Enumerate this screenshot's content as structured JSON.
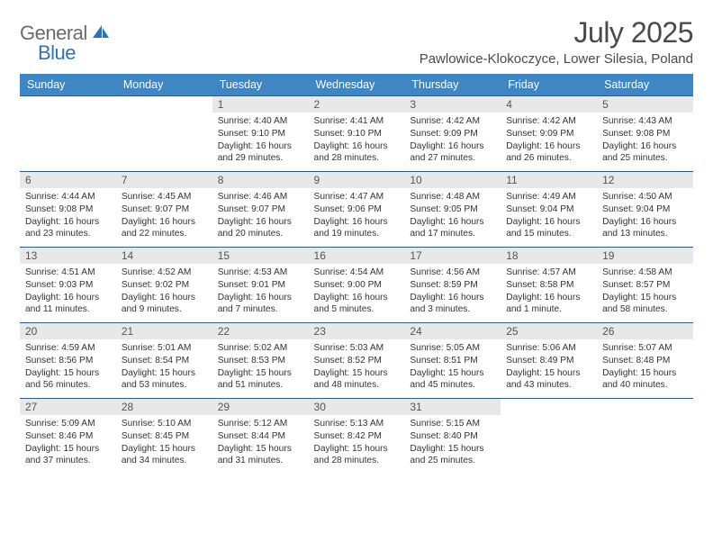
{
  "logo": {
    "textA": "General",
    "textB": "Blue"
  },
  "title": "July 2025",
  "location": "Pawlowice-Klokoczyce, Lower Silesia, Poland",
  "colors": {
    "headerBg": "#3f86c5",
    "rowBorder": "#2d5c8a",
    "dayNumBg": "#e8e8e8",
    "text": "#333333",
    "titleText": "#4a4a4a",
    "logoGray": "#6b6b6b",
    "logoBlue": "#2d73b6"
  },
  "dayHeaders": [
    "Sunday",
    "Monday",
    "Tuesday",
    "Wednesday",
    "Thursday",
    "Friday",
    "Saturday"
  ],
  "weeks": [
    [
      {
        "n": "",
        "sr": "",
        "ss": "",
        "dl": ""
      },
      {
        "n": "",
        "sr": "",
        "ss": "",
        "dl": ""
      },
      {
        "n": "1",
        "sr": "Sunrise: 4:40 AM",
        "ss": "Sunset: 9:10 PM",
        "dl": "Daylight: 16 hours and 29 minutes."
      },
      {
        "n": "2",
        "sr": "Sunrise: 4:41 AM",
        "ss": "Sunset: 9:10 PM",
        "dl": "Daylight: 16 hours and 28 minutes."
      },
      {
        "n": "3",
        "sr": "Sunrise: 4:42 AM",
        "ss": "Sunset: 9:09 PM",
        "dl": "Daylight: 16 hours and 27 minutes."
      },
      {
        "n": "4",
        "sr": "Sunrise: 4:42 AM",
        "ss": "Sunset: 9:09 PM",
        "dl": "Daylight: 16 hours and 26 minutes."
      },
      {
        "n": "5",
        "sr": "Sunrise: 4:43 AM",
        "ss": "Sunset: 9:08 PM",
        "dl": "Daylight: 16 hours and 25 minutes."
      }
    ],
    [
      {
        "n": "6",
        "sr": "Sunrise: 4:44 AM",
        "ss": "Sunset: 9:08 PM",
        "dl": "Daylight: 16 hours and 23 minutes."
      },
      {
        "n": "7",
        "sr": "Sunrise: 4:45 AM",
        "ss": "Sunset: 9:07 PM",
        "dl": "Daylight: 16 hours and 22 minutes."
      },
      {
        "n": "8",
        "sr": "Sunrise: 4:46 AM",
        "ss": "Sunset: 9:07 PM",
        "dl": "Daylight: 16 hours and 20 minutes."
      },
      {
        "n": "9",
        "sr": "Sunrise: 4:47 AM",
        "ss": "Sunset: 9:06 PM",
        "dl": "Daylight: 16 hours and 19 minutes."
      },
      {
        "n": "10",
        "sr": "Sunrise: 4:48 AM",
        "ss": "Sunset: 9:05 PM",
        "dl": "Daylight: 16 hours and 17 minutes."
      },
      {
        "n": "11",
        "sr": "Sunrise: 4:49 AM",
        "ss": "Sunset: 9:04 PM",
        "dl": "Daylight: 16 hours and 15 minutes."
      },
      {
        "n": "12",
        "sr": "Sunrise: 4:50 AM",
        "ss": "Sunset: 9:04 PM",
        "dl": "Daylight: 16 hours and 13 minutes."
      }
    ],
    [
      {
        "n": "13",
        "sr": "Sunrise: 4:51 AM",
        "ss": "Sunset: 9:03 PM",
        "dl": "Daylight: 16 hours and 11 minutes."
      },
      {
        "n": "14",
        "sr": "Sunrise: 4:52 AM",
        "ss": "Sunset: 9:02 PM",
        "dl": "Daylight: 16 hours and 9 minutes."
      },
      {
        "n": "15",
        "sr": "Sunrise: 4:53 AM",
        "ss": "Sunset: 9:01 PM",
        "dl": "Daylight: 16 hours and 7 minutes."
      },
      {
        "n": "16",
        "sr": "Sunrise: 4:54 AM",
        "ss": "Sunset: 9:00 PM",
        "dl": "Daylight: 16 hours and 5 minutes."
      },
      {
        "n": "17",
        "sr": "Sunrise: 4:56 AM",
        "ss": "Sunset: 8:59 PM",
        "dl": "Daylight: 16 hours and 3 minutes."
      },
      {
        "n": "18",
        "sr": "Sunrise: 4:57 AM",
        "ss": "Sunset: 8:58 PM",
        "dl": "Daylight: 16 hours and 1 minute."
      },
      {
        "n": "19",
        "sr": "Sunrise: 4:58 AM",
        "ss": "Sunset: 8:57 PM",
        "dl": "Daylight: 15 hours and 58 minutes."
      }
    ],
    [
      {
        "n": "20",
        "sr": "Sunrise: 4:59 AM",
        "ss": "Sunset: 8:56 PM",
        "dl": "Daylight: 15 hours and 56 minutes."
      },
      {
        "n": "21",
        "sr": "Sunrise: 5:01 AM",
        "ss": "Sunset: 8:54 PM",
        "dl": "Daylight: 15 hours and 53 minutes."
      },
      {
        "n": "22",
        "sr": "Sunrise: 5:02 AM",
        "ss": "Sunset: 8:53 PM",
        "dl": "Daylight: 15 hours and 51 minutes."
      },
      {
        "n": "23",
        "sr": "Sunrise: 5:03 AM",
        "ss": "Sunset: 8:52 PM",
        "dl": "Daylight: 15 hours and 48 minutes."
      },
      {
        "n": "24",
        "sr": "Sunrise: 5:05 AM",
        "ss": "Sunset: 8:51 PM",
        "dl": "Daylight: 15 hours and 45 minutes."
      },
      {
        "n": "25",
        "sr": "Sunrise: 5:06 AM",
        "ss": "Sunset: 8:49 PM",
        "dl": "Daylight: 15 hours and 43 minutes."
      },
      {
        "n": "26",
        "sr": "Sunrise: 5:07 AM",
        "ss": "Sunset: 8:48 PM",
        "dl": "Daylight: 15 hours and 40 minutes."
      }
    ],
    [
      {
        "n": "27",
        "sr": "Sunrise: 5:09 AM",
        "ss": "Sunset: 8:46 PM",
        "dl": "Daylight: 15 hours and 37 minutes."
      },
      {
        "n": "28",
        "sr": "Sunrise: 5:10 AM",
        "ss": "Sunset: 8:45 PM",
        "dl": "Daylight: 15 hours and 34 minutes."
      },
      {
        "n": "29",
        "sr": "Sunrise: 5:12 AM",
        "ss": "Sunset: 8:44 PM",
        "dl": "Daylight: 15 hours and 31 minutes."
      },
      {
        "n": "30",
        "sr": "Sunrise: 5:13 AM",
        "ss": "Sunset: 8:42 PM",
        "dl": "Daylight: 15 hours and 28 minutes."
      },
      {
        "n": "31",
        "sr": "Sunrise: 5:15 AM",
        "ss": "Sunset: 8:40 PM",
        "dl": "Daylight: 15 hours and 25 minutes."
      },
      {
        "n": "",
        "sr": "",
        "ss": "",
        "dl": ""
      },
      {
        "n": "",
        "sr": "",
        "ss": "",
        "dl": ""
      }
    ]
  ]
}
